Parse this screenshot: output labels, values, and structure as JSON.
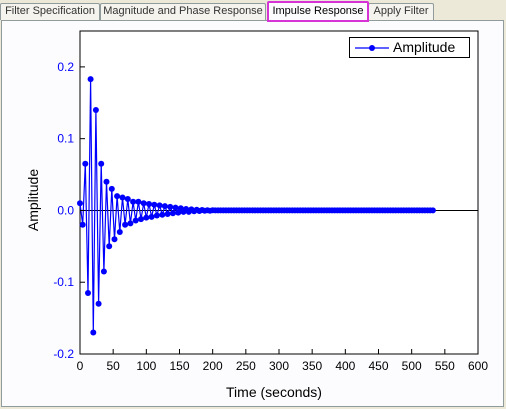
{
  "tabs": [
    {
      "label": "Filter Specification",
      "active": false
    },
    {
      "label": "Magnitude and Phase Response",
      "active": false
    },
    {
      "label": "Impulse Response",
      "active": true
    },
    {
      "label": "Apply Filter",
      "active": false
    }
  ],
  "colors": {
    "series": "#0000ff",
    "highlight": "#d633d6"
  },
  "chart_data": {
    "type": "scatter",
    "title": "",
    "xlabel": "Time (seconds)",
    "ylabel": "Amplitude",
    "xlim": [
      0,
      600
    ],
    "ylim": [
      -0.2,
      0.25
    ],
    "xticks": [
      0,
      50,
      100,
      150,
      200,
      250,
      300,
      350,
      400,
      450,
      500,
      550,
      600
    ],
    "yticks": [
      -0.2,
      -0.1,
      0.0,
      0.1,
      0.2
    ],
    "ytick_labels": [
      "-0.2",
      "-0.1",
      "0.0",
      "0.1",
      "0.2"
    ],
    "grid": false,
    "legend_position": "top-right",
    "series": [
      {
        "name": "Amplitude",
        "x_start": 0,
        "x_step": 4,
        "x_end": 532,
        "points": [
          [
            0,
            0.01
          ],
          [
            4,
            -0.02
          ],
          [
            8,
            0.065
          ],
          [
            12,
            -0.115
          ],
          [
            16,
            0.183
          ],
          [
            20,
            -0.17
          ],
          [
            24,
            0.14
          ],
          [
            28,
            -0.13
          ],
          [
            32,
            0.065
          ],
          [
            36,
            -0.085
          ],
          [
            40,
            0.04
          ],
          [
            44,
            -0.05
          ],
          [
            48,
            0.03
          ],
          [
            52,
            -0.04
          ],
          [
            56,
            0.02
          ],
          [
            60,
            -0.03
          ],
          [
            64,
            0.018
          ],
          [
            68,
            -0.02
          ],
          [
            72,
            0.016
          ],
          [
            76,
            -0.018
          ],
          [
            80,
            0.012
          ],
          [
            84,
            -0.014
          ],
          [
            88,
            0.012
          ],
          [
            92,
            -0.012
          ],
          [
            96,
            0.01
          ],
          [
            100,
            -0.01
          ],
          [
            104,
            0.009
          ],
          [
            108,
            -0.009
          ],
          [
            112,
            0.008
          ],
          [
            116,
            -0.007
          ],
          [
            120,
            0.007
          ],
          [
            124,
            -0.006
          ],
          [
            128,
            0.006
          ],
          [
            132,
            -0.005
          ],
          [
            136,
            0.005
          ],
          [
            140,
            -0.004
          ],
          [
            144,
            0.004
          ],
          [
            148,
            -0.003
          ],
          [
            152,
            0.003
          ],
          [
            156,
            -0.002
          ],
          [
            160,
            0.002
          ],
          [
            164,
            -0.002
          ],
          [
            168,
            0.0015
          ],
          [
            172,
            -0.0012
          ],
          [
            176,
            0.001
          ],
          [
            180,
            -0.0008
          ],
          [
            184,
            0.0006
          ],
          [
            188,
            -0.0005
          ],
          [
            192,
            0.0004
          ],
          [
            196,
            -0.0003
          ],
          [
            200,
            0.0002
          ]
        ]
      }
    ]
  }
}
